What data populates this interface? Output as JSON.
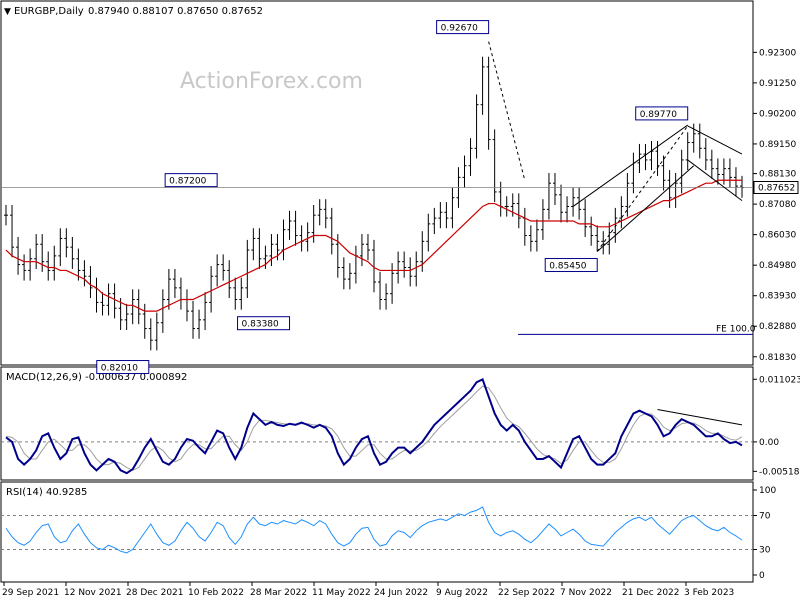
{
  "header": {
    "symbol": "EURGBP,Daily",
    "ohlc": "0.87940 0.88107 0.87650 0.87652",
    "watermark": "ActionForex.com"
  },
  "colors": {
    "price": "#000000",
    "ma": "#cc0000",
    "macd": "#00008b",
    "signal": "#a0a0a0",
    "rsi": "#1e90ff",
    "label_border": "#00008b",
    "grid_dash": "#808080",
    "fe_line": "#00008b"
  },
  "chart_data": [
    {
      "type": "line",
      "panel": "price",
      "title": "EURGBP,Daily",
      "y_ticks": [
        "0.92300",
        "0.91250",
        "0.90200",
        "0.89150",
        "0.88130",
        "0.87080",
        "0.86030",
        "0.84980",
        "0.83930",
        "0.82880",
        "0.81830"
      ],
      "ylim": [
        0.8165,
        0.93
      ],
      "x_ticks": [
        "29 Sep 2021",
        "12 Nov 2021",
        "28 Dec 2021",
        "10 Feb 2022",
        "28 Mar 2022",
        "11 May 2022",
        "24 Jun 2022",
        "9 Aug 2022",
        "22 Sep 2022",
        "7 Nov 2022",
        "21 Dec 2022",
        "3 Feb 2023"
      ],
      "current_price": "0.87652",
      "annotations": [
        {
          "text": "0.92670",
          "value": 0.9267
        },
        {
          "text": "0.89770",
          "value": 0.8977
        },
        {
          "text": "0.87200",
          "value": 0.872
        },
        {
          "text": "0.85450",
          "value": 0.8545
        },
        {
          "text": "0.83380",
          "value": 0.8338
        },
        {
          "text": "0.82010",
          "value": 0.8201
        }
      ],
      "fe_label": "FE 100.0",
      "fe_value": 0.826,
      "series": [
        {
          "name": "EURGBP close",
          "values": [
            0.867,
            0.856,
            0.85,
            0.848,
            0.852,
            0.857,
            0.851,
            0.848,
            0.853,
            0.859,
            0.856,
            0.852,
            0.848,
            0.846,
            0.842,
            0.837,
            0.836,
            0.84,
            0.835,
            0.831,
            0.833,
            0.838,
            0.833,
            0.828,
            0.824,
            0.83,
            0.838,
            0.845,
            0.842,
            0.838,
            0.834,
            0.828,
            0.831,
            0.837,
            0.846,
            0.85,
            0.848,
            0.842,
            0.838,
            0.842,
            0.855,
            0.859,
            0.852,
            0.853,
            0.857,
            0.855,
            0.862,
            0.865,
            0.86,
            0.858,
            0.861,
            0.867,
            0.869,
            0.866,
            0.857,
            0.849,
            0.845,
            0.847,
            0.853,
            0.857,
            0.855,
            0.844,
            0.838,
            0.84,
            0.847,
            0.851,
            0.849,
            0.846,
            0.851,
            0.858,
            0.864,
            0.866,
            0.868,
            0.866,
            0.873,
            0.88,
            0.884,
            0.89,
            0.905,
            0.918,
            0.893,
            0.875,
            0.87,
            0.87,
            0.871,
            0.866,
            0.86,
            0.858,
            0.862,
            0.869,
            0.878,
            0.874,
            0.868,
            0.87,
            0.873,
            0.869,
            0.863,
            0.86,
            0.858,
            0.857,
            0.861,
            0.866,
            0.87,
            0.878,
            0.885,
            0.888,
            0.886,
            0.889,
            0.884,
            0.879,
            0.873,
            0.878,
            0.886,
            0.892,
            0.895,
            0.89,
            0.886,
            0.883,
            0.881,
            0.883,
            0.88,
            0.877,
            0.8765
          ]
        },
        {
          "name": "MA",
          "values": [
            0.855,
            0.853,
            0.852,
            0.851,
            0.851,
            0.851,
            0.85,
            0.849,
            0.849,
            0.848,
            0.848,
            0.847,
            0.846,
            0.845,
            0.843,
            0.842,
            0.84,
            0.839,
            0.838,
            0.837,
            0.836,
            0.836,
            0.835,
            0.834,
            0.834,
            0.834,
            0.835,
            0.836,
            0.837,
            0.838,
            0.838,
            0.838,
            0.839,
            0.84,
            0.841,
            0.842,
            0.843,
            0.844,
            0.845,
            0.846,
            0.847,
            0.848,
            0.849,
            0.85,
            0.852,
            0.853,
            0.855,
            0.856,
            0.857,
            0.858,
            0.859,
            0.86,
            0.86,
            0.86,
            0.859,
            0.858,
            0.856,
            0.854,
            0.853,
            0.852,
            0.851,
            0.849,
            0.848,
            0.848,
            0.848,
            0.848,
            0.848,
            0.848,
            0.849,
            0.85,
            0.852,
            0.854,
            0.856,
            0.858,
            0.86,
            0.862,
            0.864,
            0.866,
            0.868,
            0.87,
            0.871,
            0.871,
            0.87,
            0.869,
            0.868,
            0.867,
            0.866,
            0.865,
            0.865,
            0.865,
            0.865,
            0.865,
            0.865,
            0.865,
            0.865,
            0.864,
            0.864,
            0.864,
            0.863,
            0.863,
            0.863,
            0.864,
            0.865,
            0.866,
            0.867,
            0.868,
            0.869,
            0.87,
            0.871,
            0.872,
            0.872,
            0.873,
            0.874,
            0.875,
            0.876,
            0.877,
            0.878,
            0.878,
            0.879,
            0.879,
            0.879,
            0.879,
            0.879
          ]
        }
      ]
    },
    {
      "type": "line",
      "panel": "macd",
      "title": "MACD(12,26,9) -0.000637 0.000892",
      "y_ticks": [
        "0.011023",
        "0.00",
        "-0.005182"
      ],
      "ylim": [
        -0.006,
        0.0116
      ],
      "series": [
        {
          "name": "MACD",
          "values": [
            0.0008,
            0.0,
            -0.003,
            -0.004,
            -0.003,
            -0.0015,
            0.001,
            0.0015,
            -0.001,
            -0.003,
            -0.002,
            0.0005,
            0.0008,
            -0.002,
            -0.004,
            -0.005,
            -0.004,
            -0.003,
            -0.0035,
            -0.005,
            -0.0055,
            -0.0048,
            -0.003,
            -0.001,
            0.0005,
            -0.0015,
            -0.0035,
            -0.004,
            -0.003,
            -0.001,
            0.0005,
            0.0002,
            -0.001,
            -0.002,
            0.0,
            0.002,
            0.0015,
            -0.001,
            -0.003,
            -0.001,
            0.0025,
            0.005,
            0.004,
            0.003,
            0.0035,
            0.003,
            0.0028,
            0.0032,
            0.003,
            0.0034,
            0.003,
            0.0025,
            0.003,
            0.0025,
            0.001,
            -0.002,
            -0.004,
            -0.003,
            -0.001,
            0.0005,
            0.001,
            -0.002,
            -0.004,
            -0.0035,
            -0.002,
            -0.001,
            -0.001,
            -0.002,
            -0.001,
            0.0,
            0.0015,
            0.003,
            0.004,
            0.005,
            0.006,
            0.007,
            0.008,
            0.009,
            0.0105,
            0.011,
            0.008,
            0.005,
            0.003,
            0.002,
            0.003,
            0.002,
            0.0,
            -0.0015,
            -0.003,
            -0.003,
            -0.0025,
            -0.0035,
            -0.0045,
            -0.002,
            0.0005,
            0.001,
            -0.001,
            -0.003,
            -0.004,
            -0.004,
            -0.003,
            -0.002,
            0.001,
            0.003,
            0.005,
            0.0055,
            0.005,
            0.0045,
            0.003,
            0.001,
            0.0015,
            0.003,
            0.004,
            0.0035,
            0.003,
            0.002,
            0.001,
            0.001,
            0.0015,
            0.0005,
            -0.0002,
            0.0,
            -0.0006
          ]
        },
        {
          "name": "Signal",
          "values": [
            0.001,
            0.0008,
            0.0,
            -0.002,
            -0.003,
            -0.003,
            -0.0015,
            0.0,
            0.0005,
            -0.0005,
            -0.0015,
            -0.0015,
            -0.0005,
            -0.0005,
            -0.0015,
            -0.003,
            -0.004,
            -0.004,
            -0.0035,
            -0.0038,
            -0.0045,
            -0.005,
            -0.0045,
            -0.003,
            -0.0015,
            -0.0008,
            -0.0015,
            -0.0028,
            -0.0035,
            -0.003,
            -0.0015,
            -0.0005,
            -0.0005,
            -0.0012,
            -0.0012,
            0.0,
            0.001,
            0.001,
            -0.0005,
            -0.0015,
            0.0,
            0.0025,
            0.0038,
            0.0038,
            0.0036,
            0.0034,
            0.0032,
            0.0031,
            0.0031,
            0.0032,
            0.0032,
            0.003,
            0.0029,
            0.0028,
            0.0023,
            0.001,
            -0.001,
            -0.0025,
            -0.0025,
            -0.0015,
            -0.0005,
            -0.0005,
            -0.002,
            -0.003,
            -0.003,
            -0.0022,
            -0.0015,
            -0.0016,
            -0.0015,
            -0.0008,
            0.0002,
            0.0015,
            0.0027,
            0.0037,
            0.0047,
            0.0057,
            0.0067,
            0.0077,
            0.0088,
            0.0098,
            0.0095,
            0.008,
            0.006,
            0.0042,
            0.0032,
            0.0027,
            0.0015,
            0.0002,
            -0.0012,
            -0.0022,
            -0.0026,
            -0.003,
            -0.0038,
            -0.0032,
            -0.0015,
            0.0,
            0.0,
            -0.0015,
            -0.0028,
            -0.0036,
            -0.0036,
            -0.003,
            -0.0012,
            0.001,
            0.003,
            0.0045,
            0.005,
            0.0049,
            0.004,
            0.0026,
            0.002,
            0.0025,
            0.0032,
            0.0034,
            0.0033,
            0.0028,
            0.002,
            0.0015,
            0.0015,
            0.001,
            0.0005,
            0.0003,
            0.0009
          ]
        }
      ]
    },
    {
      "type": "line",
      "panel": "rsi",
      "title": "RSI(14) 40.9285",
      "y_ticks": [
        "100",
        "70",
        "30",
        "0"
      ],
      "ylim": [
        0,
        100
      ],
      "series": [
        {
          "name": "RSI",
          "values": [
            55,
            45,
            38,
            35,
            40,
            50,
            58,
            60,
            45,
            38,
            40,
            52,
            60,
            48,
            38,
            32,
            30,
            35,
            32,
            28,
            26,
            30,
            40,
            50,
            60,
            48,
            38,
            35,
            40,
            52,
            62,
            55,
            45,
            40,
            50,
            62,
            58,
            44,
            36,
            45,
            60,
            68,
            60,
            58,
            62,
            60,
            64,
            62,
            60,
            65,
            62,
            58,
            64,
            60,
            48,
            38,
            34,
            38,
            48,
            55,
            56,
            42,
            34,
            36,
            46,
            52,
            50,
            44,
            52,
            58,
            62,
            64,
            66,
            64,
            68,
            72,
            70,
            74,
            76,
            80,
            62,
            50,
            46,
            50,
            52,
            48,
            42,
            38,
            44,
            52,
            60,
            54,
            46,
            50,
            54,
            48,
            40,
            36,
            35,
            34,
            42,
            50,
            56,
            62,
            66,
            68,
            64,
            68,
            60,
            54,
            48,
            56,
            64,
            68,
            70,
            64,
            58,
            54,
            52,
            56,
            50,
            46,
            41
          ]
        }
      ]
    }
  ]
}
